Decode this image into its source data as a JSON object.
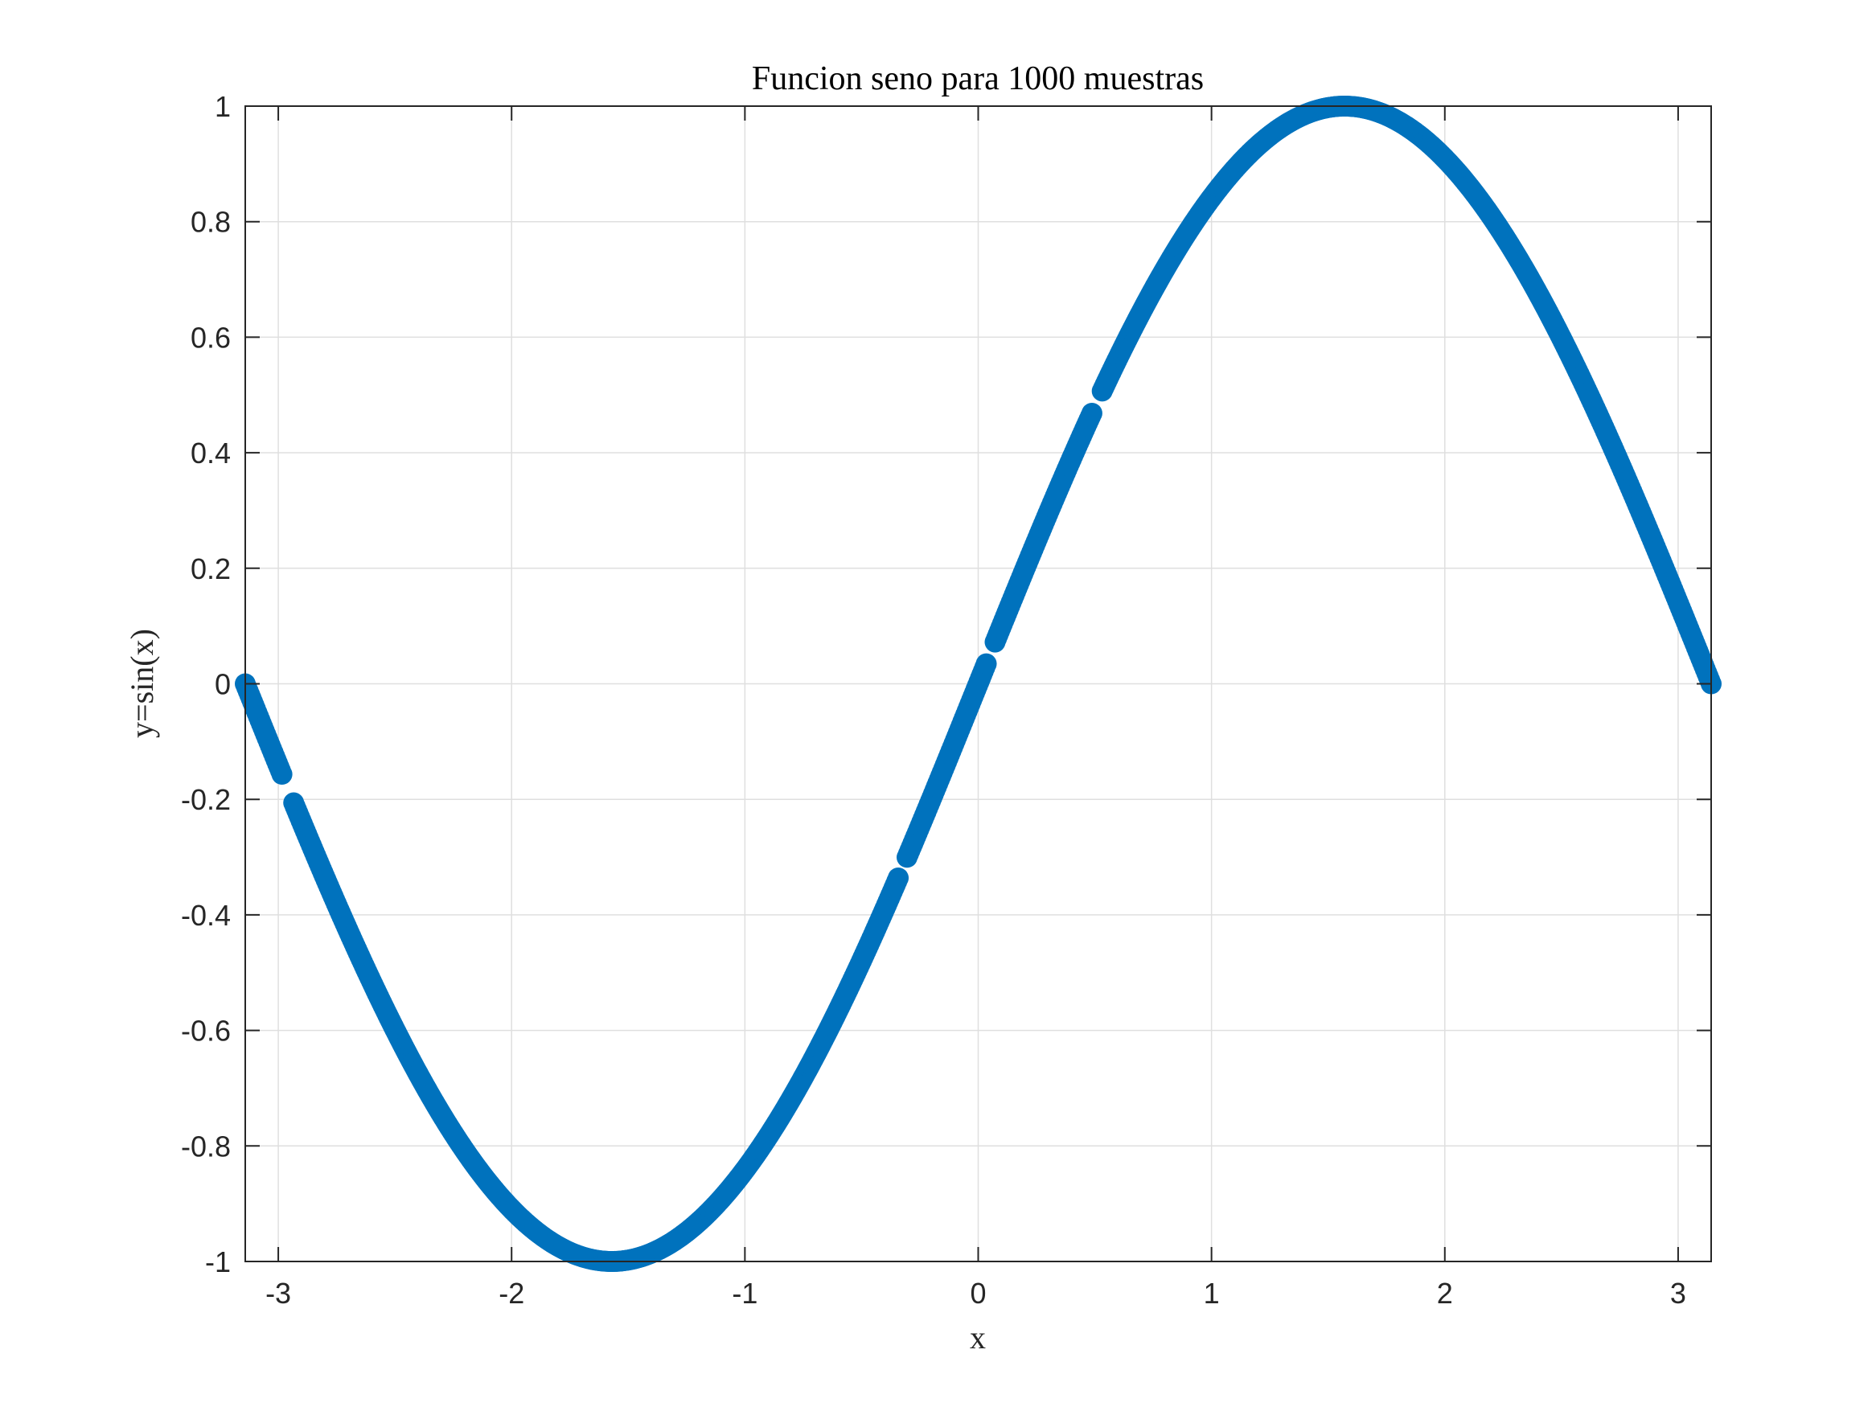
{
  "chart_data": {
    "type": "scatter",
    "title": "Funcion seno para 1000 muestras",
    "xlabel": "x",
    "ylabel": "y=sin(x)",
    "xlim": [
      -3.14159,
      3.14159
    ],
    "ylim": [
      -1,
      1
    ],
    "xticks": [
      -3,
      -2,
      -1,
      0,
      1,
      2,
      3
    ],
    "xtick_labels": [
      "-3",
      "-2",
      "-1",
      "0",
      "1",
      "2",
      "3"
    ],
    "yticks": [
      -1,
      -0.8,
      -0.6,
      -0.4,
      -0.2,
      0,
      0.2,
      0.4,
      0.6,
      0.8,
      1
    ],
    "ytick_labels": [
      "-1",
      "-0.8",
      "-0.6",
      "-0.4",
      "-0.2",
      "0",
      "0.2",
      "0.4",
      "0.6",
      "0.8",
      "1"
    ],
    "grid": true,
    "marker_color": "#0072bd",
    "series": [
      {
        "function": "sin",
        "samples": 1000,
        "x_range": [
          -3.14159,
          3.14159
        ],
        "gaps": [
          [
            -2.98,
            -2.94
          ],
          [
            -0.34,
            -0.31
          ],
          [
            0.04,
            0.07
          ],
          [
            0.49,
            0.53
          ]
        ]
      }
    ]
  }
}
